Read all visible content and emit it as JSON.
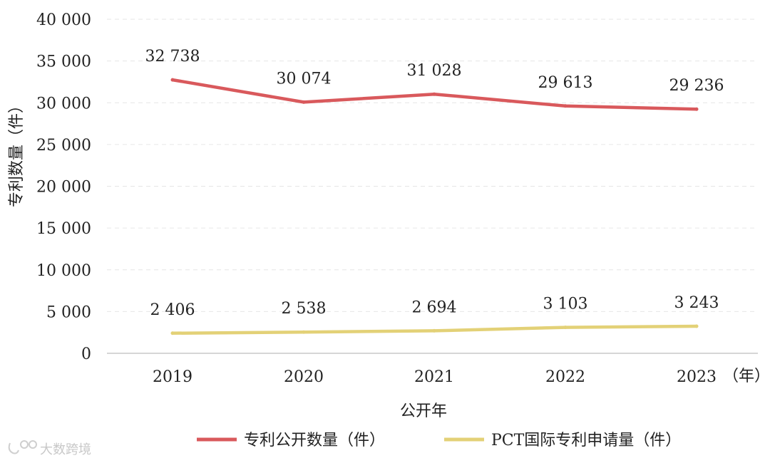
{
  "chart_data": {
    "type": "line",
    "x": [
      "2019",
      "2020",
      "2021",
      "2022",
      "2023"
    ],
    "x_unit": "（年）",
    "xlabel": "公开年",
    "ylabel": "专利数量（件）",
    "ylim": [
      0,
      40000
    ],
    "yticks": [
      "0",
      "5 000",
      "10 000",
      "15 000",
      "20 000",
      "25 000",
      "30 000",
      "35 000",
      "40 000"
    ],
    "grid": true,
    "legend_position": "bottom",
    "series": [
      {
        "name": "专利公开数量（件）",
        "color": "#d9595c",
        "values": [
          32738,
          30074,
          31028,
          29613,
          29236
        ],
        "labels": [
          "32 738",
          "30 074",
          "31 028",
          "29 613",
          "29 236"
        ]
      },
      {
        "name": "PCT国际专利申请量（件）",
        "color": "#e3d177",
        "values": [
          2406,
          2538,
          2694,
          3103,
          3243
        ],
        "labels": [
          "2 406",
          "2 538",
          "2 694",
          "3 103",
          "3 243"
        ]
      }
    ]
  },
  "watermark": "大数跨境"
}
